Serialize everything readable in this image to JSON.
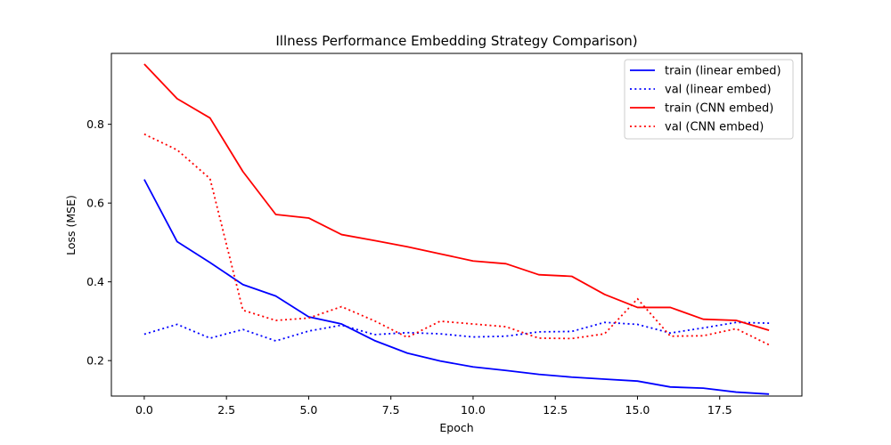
{
  "chart_data": {
    "type": "line",
    "title": "Illness Performance Embedding Strategy Comparison)",
    "xlabel": "Epoch",
    "ylabel": "Loss (MSE)",
    "xlim": [
      -1,
      20
    ],
    "ylim": [
      0.11,
      0.98
    ],
    "xticks": [
      0.0,
      2.5,
      5.0,
      7.5,
      10.0,
      12.5,
      15.0,
      17.5
    ],
    "xtick_labels": [
      "0.0",
      "2.5",
      "5.0",
      "7.5",
      "10.0",
      "12.5",
      "15.0",
      "17.5"
    ],
    "yticks": [
      0.2,
      0.4,
      0.6,
      0.8
    ],
    "ytick_labels": [
      "0.2",
      "0.4",
      "0.6",
      "0.8"
    ],
    "grid": false,
    "legend_position": "top-right",
    "x": [
      0,
      1,
      2,
      3,
      4,
      5,
      6,
      7,
      8,
      9,
      10,
      11,
      12,
      13,
      14,
      15,
      16,
      17,
      18,
      19
    ],
    "series": [
      {
        "name": "train (linear embed)",
        "color": "#0000ff",
        "style": "solid",
        "values": [
          0.66,
          0.502,
          0.449,
          0.393,
          0.364,
          0.311,
          0.293,
          0.251,
          0.219,
          0.199,
          0.184,
          0.175,
          0.165,
          0.158,
          0.153,
          0.148,
          0.133,
          0.13,
          0.12,
          0.115
        ]
      },
      {
        "name": "val (linear embed)",
        "color": "#0000ff",
        "style": "dotted",
        "values": [
          0.267,
          0.292,
          0.257,
          0.279,
          0.25,
          0.275,
          0.29,
          0.266,
          0.271,
          0.268,
          0.26,
          0.262,
          0.273,
          0.274,
          0.297,
          0.292,
          0.27,
          0.283,
          0.297,
          0.295
        ]
      },
      {
        "name": "train (CNN embed)",
        "color": "#ff0000",
        "style": "solid",
        "values": [
          0.953,
          0.865,
          0.816,
          0.68,
          0.571,
          0.562,
          0.52,
          0.505,
          0.489,
          0.471,
          0.453,
          0.446,
          0.418,
          0.414,
          0.368,
          0.335,
          0.335,
          0.305,
          0.302,
          0.277
        ]
      },
      {
        "name": "val (CNN embed)",
        "color": "#ff0000",
        "style": "dotted",
        "values": [
          0.775,
          0.735,
          0.662,
          0.328,
          0.302,
          0.308,
          0.337,
          0.301,
          0.259,
          0.3,
          0.293,
          0.286,
          0.257,
          0.256,
          0.268,
          0.357,
          0.262,
          0.263,
          0.281,
          0.24
        ]
      }
    ]
  }
}
